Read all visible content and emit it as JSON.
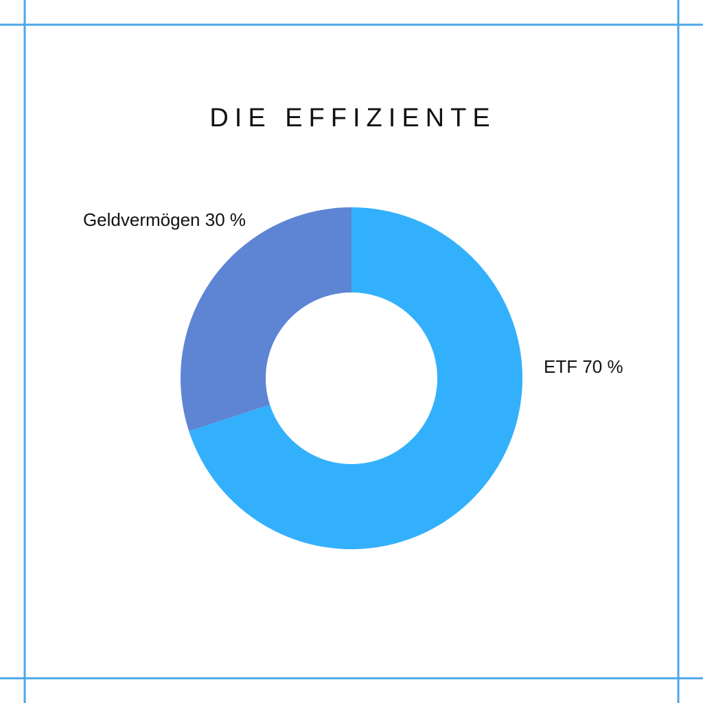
{
  "chart_data": {
    "type": "donut",
    "title": "DIE EFFIZIENTE",
    "categories": [
      "Geldvermögen",
      "ETF"
    ],
    "values": [
      30,
      70
    ],
    "value_labels": [
      "30 %",
      "70 %"
    ],
    "colors": [
      "#5e84d4",
      "#33b0fc"
    ]
  }
}
